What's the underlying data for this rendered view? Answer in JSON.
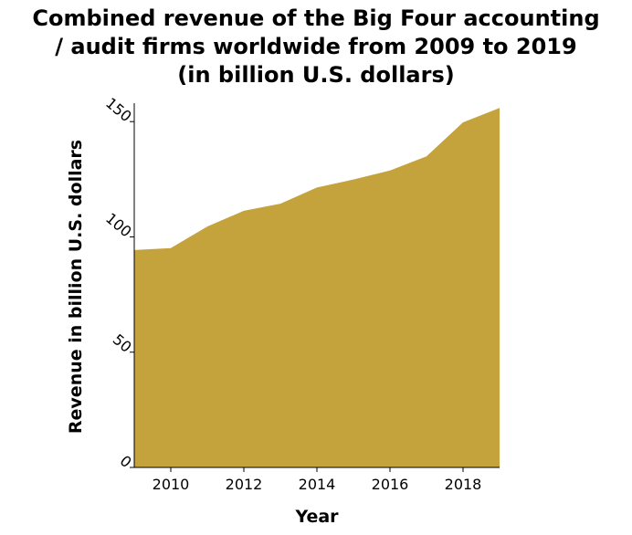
{
  "chart_data": {
    "type": "area",
    "title_lines": [
      "Combined revenue of the Big Four accounting",
      "/ audit firms worldwide from 2009 to 2019",
      "(in billion U.S. dollars)"
    ],
    "xlabel": "Year",
    "ylabel": "Revenue in billion U.S. dollars",
    "x": [
      2009,
      2010,
      2011,
      2012,
      2013,
      2014,
      2015,
      2016,
      2017,
      2018,
      2019
    ],
    "series": [
      {
        "values": [
          94.3,
          95.1,
          104.5,
          111.3,
          114.4,
          121.4,
          124.9,
          128.8,
          134.9,
          149.7,
          155.9
        ]
      }
    ],
    "xlim": [
      2009,
      2019
    ],
    "ylim": [
      0,
      158
    ],
    "x_ticks": [
      2010,
      2012,
      2014,
      2016,
      2018
    ],
    "y_ticks": [
      0,
      50,
      100,
      150
    ],
    "fill_color": "#c4a23c",
    "grid": false,
    "legend": "none"
  }
}
